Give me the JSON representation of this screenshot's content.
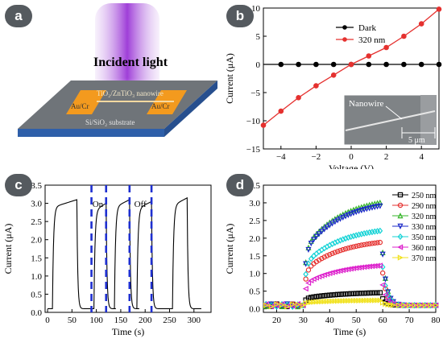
{
  "panels": {
    "a": {
      "label": "a",
      "title": "Incident light",
      "nanowire": "TiO₂/ZnTiO₃ nanowire",
      "electrode_left": "Au/Cr",
      "electrode_right": "Au/Cr",
      "substrate": "Si/SiO₂ substrate"
    },
    "b": {
      "label": "b",
      "inset_label": "Nanowire",
      "scale_bar": "5 μm"
    },
    "c": {
      "label": "c",
      "on_label": "On",
      "off_label": "Off"
    },
    "d": {
      "label": "d"
    }
  },
  "colors": {
    "badge": "#555a5f",
    "red": "#e5312f",
    "dark": "#000000",
    "dash": "#1e2fd0",
    "light_beam": "#a24bd6"
  },
  "chart_data": [
    {
      "id": "b",
      "type": "line",
      "xlabel": "Voltage (V)",
      "ylabel": "Current (μA)",
      "xlim": [
        -5,
        5
      ],
      "ylim": [
        -15,
        10
      ],
      "xticks": [
        -4,
        -2,
        0,
        2,
        4
      ],
      "yticks": [
        -15,
        -10,
        -5,
        0,
        5,
        10
      ],
      "legend": "top-right",
      "series": [
        {
          "name": "Dark",
          "color": "#000000",
          "x": [
            -5,
            -4,
            -3,
            -2,
            -1,
            0,
            1,
            2,
            3,
            4,
            5
          ],
          "y": [
            0,
            0,
            0,
            0,
            0,
            0,
            0,
            0,
            0,
            0,
            0
          ]
        },
        {
          "name": "320 nm",
          "color": "#e5312f",
          "x": [
            -5,
            -4,
            -3,
            -2,
            -1,
            0,
            1,
            2,
            3,
            4,
            5
          ],
          "y": [
            -10.8,
            -8.3,
            -5.9,
            -3.8,
            -1.9,
            0,
            1.5,
            3,
            5,
            7.2,
            9.8
          ]
        }
      ]
    },
    {
      "id": "c",
      "type": "line",
      "xlabel": "Time (s)",
      "ylabel": "Current (μA)",
      "xlim": [
        -5,
        335
      ],
      "ylim": [
        0,
        3.5
      ],
      "xticks": [
        0,
        50,
        100,
        150,
        200,
        250,
        300
      ],
      "yticks": [
        0.0,
        0.5,
        1.0,
        1.5,
        2.0,
        2.5,
        3.0,
        3.5
      ],
      "cycles": [
        {
          "on": 10,
          "off": 60,
          "peak": 3.1
        },
        {
          "on": 95,
          "off": 120,
          "peak": 3.0
        },
        {
          "on": 137,
          "off": 168,
          "peak": 3.1
        },
        {
          "on": 183,
          "off": 213,
          "peak": 3.05
        },
        {
          "on": 256,
          "off": 286,
          "peak": 3.15
        }
      ],
      "baseline": 0.1,
      "dashed_lines": [
        90,
        120,
        168,
        213
      ]
    },
    {
      "id": "d",
      "type": "scatter",
      "xlabel": "Time (s)",
      "ylabel": "Current (μA)",
      "xlim": [
        15,
        80
      ],
      "ylim": [
        -0.1,
        3.5
      ],
      "xticks": [
        20,
        30,
        40,
        50,
        60,
        70,
        80
      ],
      "yticks": [
        0.0,
        0.5,
        1.0,
        1.5,
        2.0,
        2.5,
        3.0,
        3.5
      ],
      "legend": "top-right",
      "on_time": 30,
      "off_time": 59,
      "series": [
        {
          "name": "250 nm",
          "color": "#000000",
          "marker": "square",
          "peak": 0.48
        },
        {
          "name": "290 nm",
          "color": "#e5312f",
          "marker": "circle",
          "peak": 2.0
        },
        {
          "name": "320 nm",
          "color": "#35b529",
          "marker": "triangle-up",
          "peak": 3.2
        },
        {
          "name": "330 nm",
          "color": "#1a28c8",
          "marker": "triangle-down",
          "peak": 3.1
        },
        {
          "name": "350 nm",
          "color": "#16d3d6",
          "marker": "diamond",
          "peak": 2.35
        },
        {
          "name": "360 nm",
          "color": "#dd22cc",
          "marker": "triangle-left",
          "peak": 1.3
        },
        {
          "name": "370 nm",
          "color": "#f1e21e",
          "marker": "triangle-right",
          "peak": 0.25
        }
      ]
    }
  ]
}
